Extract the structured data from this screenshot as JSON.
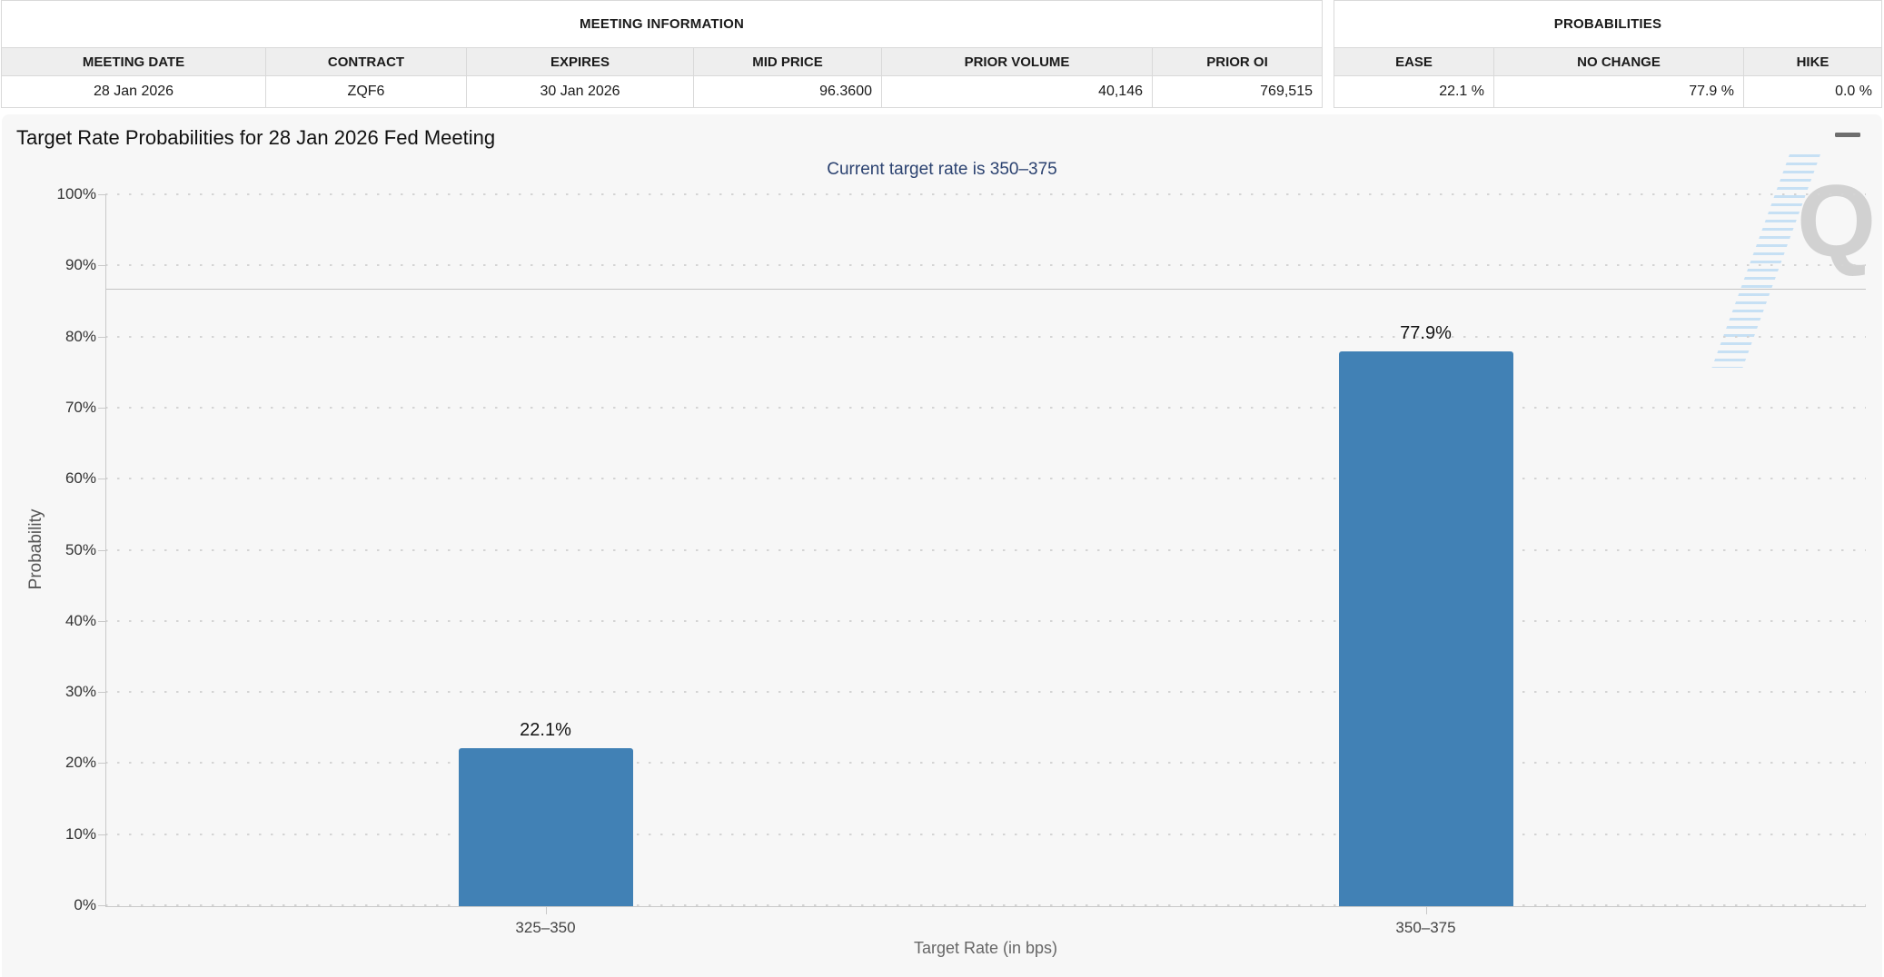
{
  "tables": {
    "meeting_info": {
      "title": "MEETING INFORMATION",
      "columns": [
        "MEETING DATE",
        "CONTRACT",
        "EXPIRES",
        "MID PRICE",
        "PRIOR VOLUME",
        "PRIOR OI"
      ],
      "values": [
        "28 Jan 2026",
        "ZQF6",
        "30 Jan 2026",
        "96.3600",
        "40,146",
        "769,515"
      ]
    },
    "probabilities": {
      "title": "PROBABILITIES",
      "columns": [
        "EASE",
        "NO CHANGE",
        "HIKE"
      ],
      "values": [
        "22.1 %",
        "77.9 %",
        "0.0 %"
      ]
    }
  },
  "chart": {
    "menu_icon": "hamburger-icon",
    "watermark_letter": "Q"
  },
  "chart_data": {
    "type": "bar",
    "title": "Target Rate Probabilities for 28 Jan 2026 Fed Meeting",
    "subtitle": "Current target rate is 350–375",
    "categories": [
      "325–350",
      "350–375"
    ],
    "values": [
      22.1,
      77.9
    ],
    "data_labels": [
      "22.1%",
      "77.9%"
    ],
    "xlabel": "Target Rate (in bps)",
    "ylabel": "Probability",
    "ylim": [
      0,
      100
    ],
    "ytick_step": 10,
    "ytick_suffix": "%",
    "grid": "dotted-horizontal",
    "reference_line_y": 86.7,
    "legend_position": "none",
    "bar_color": "#4181b5",
    "subtitle_color": "#2b4270"
  }
}
